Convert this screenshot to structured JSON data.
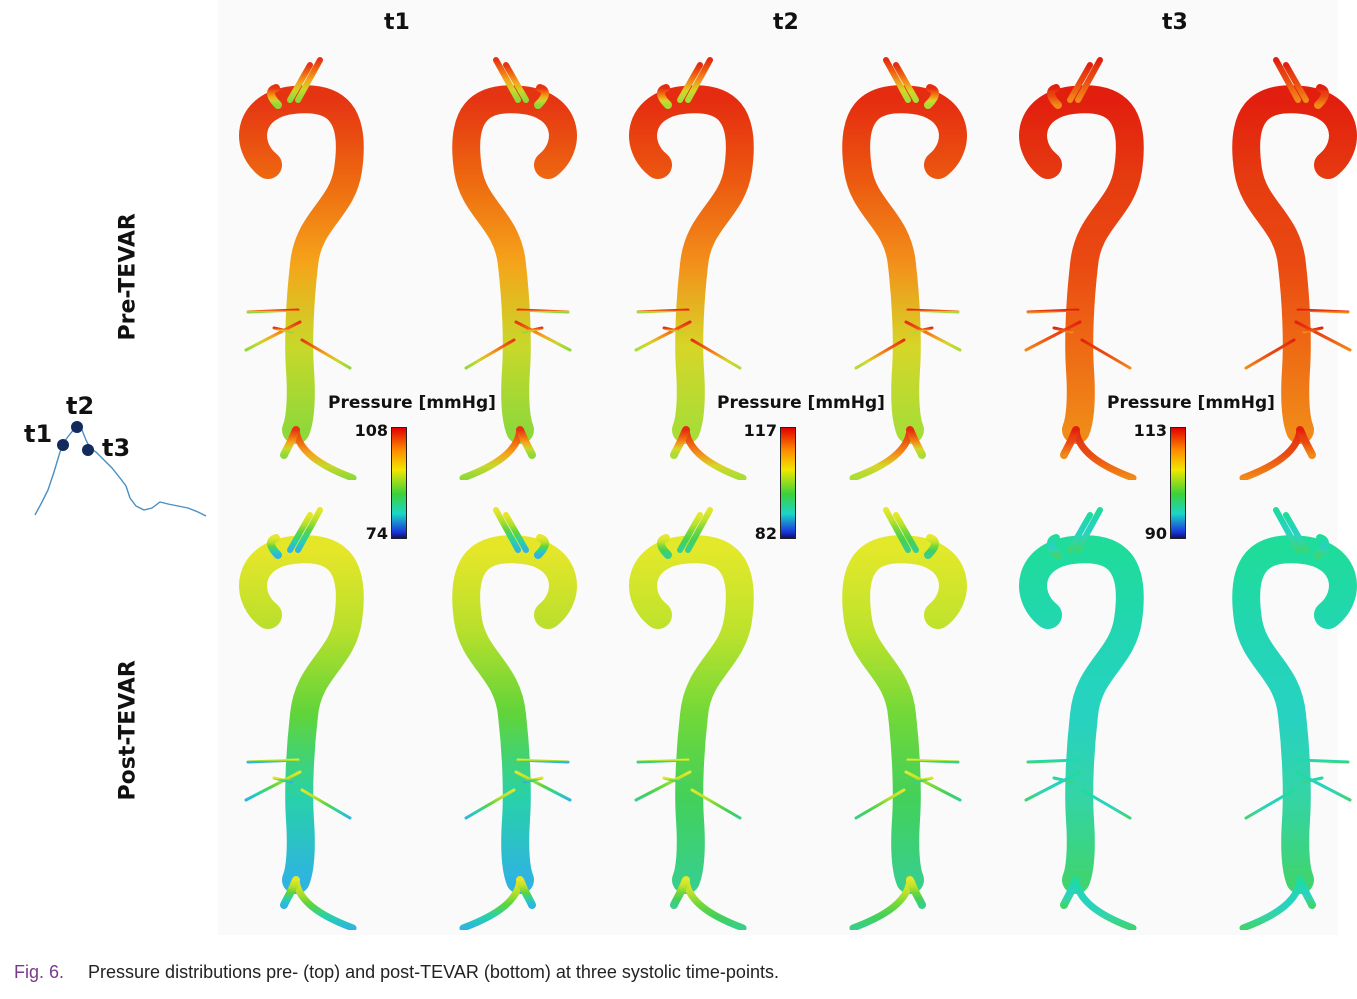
{
  "columns": [
    {
      "label": "t1",
      "colorbar": {
        "max": "108",
        "min": "74"
      }
    },
    {
      "label": "t2",
      "colorbar": {
        "max": "117",
        "min": "82"
      }
    },
    {
      "label": "t3",
      "colorbar": {
        "max": "113",
        "min": "90"
      }
    }
  ],
  "rows": {
    "top": "Pre-TEVAR",
    "bottom": "Post-TEVAR"
  },
  "colorbar_title": "Pressure [mmHg]",
  "inset": {
    "labels": [
      "t1",
      "t2",
      "t3"
    ]
  },
  "caption": {
    "fig": "Fig. 6.",
    "text": "Pressure distributions pre- (top) and post-TEVAR (bottom) at three systolic time-points."
  },
  "colors": {
    "pre_t1": [
      "#e53412",
      "#ee6a10",
      "#f5a51a",
      "#c8d82a",
      "#8fd83a"
    ],
    "pre_t2": [
      "#e52c10",
      "#ec5a10",
      "#f3901a",
      "#d6d628",
      "#a8dd36"
    ],
    "pre_t3": [
      "#e21e0e",
      "#e63c10",
      "#ea4a12",
      "#ee6a14",
      "#f08a18"
    ],
    "post_t1": [
      "#e6e629",
      "#b7df2c",
      "#5fd43a",
      "#28d1a8",
      "#2eb4e0"
    ],
    "post_t2": [
      "#e3e82a",
      "#bde22c",
      "#72d838",
      "#43d05a",
      "#38cf8a"
    ],
    "post_t3": [
      "#1fdc9a",
      "#22d6b2",
      "#27d2c2",
      "#34d4a6",
      "#3fd470"
    ]
  }
}
